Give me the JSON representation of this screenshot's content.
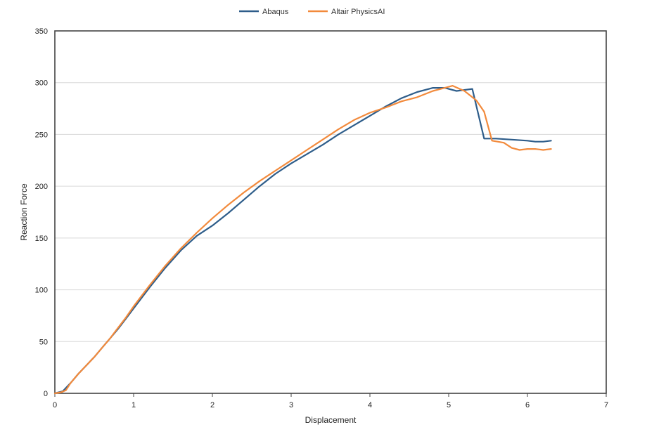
{
  "chart_data": {
    "type": "line",
    "title": "",
    "xlabel": "Displacement",
    "ylabel": "Reaction Force",
    "xlim": [
      0,
      7
    ],
    "ylim": [
      0,
      350
    ],
    "xticks": [
      0,
      1,
      2,
      3,
      4,
      5,
      6,
      7
    ],
    "yticks": [
      0,
      50,
      100,
      150,
      200,
      250,
      300,
      350
    ],
    "grid": "horizontal",
    "legend_position": "top-center",
    "series": [
      {
        "name": "Abaqus",
        "color": "#2e5d8a",
        "points": [
          [
            0.0,
            0
          ],
          [
            0.1,
            2
          ],
          [
            0.2,
            10
          ],
          [
            0.3,
            19
          ],
          [
            0.4,
            27
          ],
          [
            0.5,
            35
          ],
          [
            0.6,
            44
          ],
          [
            0.7,
            53
          ],
          [
            0.8,
            62
          ],
          [
            0.9,
            72
          ],
          [
            1.0,
            82
          ],
          [
            1.2,
            102
          ],
          [
            1.4,
            121
          ],
          [
            1.6,
            138
          ],
          [
            1.8,
            152
          ],
          [
            2.0,
            162
          ],
          [
            2.2,
            174
          ],
          [
            2.4,
            187
          ],
          [
            2.6,
            200
          ],
          [
            2.8,
            212
          ],
          [
            3.0,
            222
          ],
          [
            3.2,
            231
          ],
          [
            3.4,
            240
          ],
          [
            3.6,
            250
          ],
          [
            3.8,
            259
          ],
          [
            4.0,
            268
          ],
          [
            4.2,
            277
          ],
          [
            4.4,
            285
          ],
          [
            4.6,
            291
          ],
          [
            4.8,
            295
          ],
          [
            4.95,
            295
          ],
          [
            5.1,
            292
          ],
          [
            5.3,
            294
          ],
          [
            5.45,
            246
          ],
          [
            5.6,
            246
          ],
          [
            5.8,
            245
          ],
          [
            6.0,
            244
          ],
          [
            6.1,
            243
          ],
          [
            6.2,
            243
          ],
          [
            6.3,
            244
          ]
        ]
      },
      {
        "name": "Altair PhysicsAI",
        "color": "#f28a3c",
        "points": [
          [
            0.0,
            0
          ],
          [
            0.08,
            1
          ],
          [
            0.14,
            3
          ],
          [
            0.2,
            10
          ],
          [
            0.3,
            19
          ],
          [
            0.4,
            27
          ],
          [
            0.5,
            35
          ],
          [
            0.6,
            44
          ],
          [
            0.7,
            53
          ],
          [
            0.8,
            63
          ],
          [
            0.9,
            73
          ],
          [
            1.0,
            84
          ],
          [
            1.2,
            104
          ],
          [
            1.4,
            123
          ],
          [
            1.6,
            140
          ],
          [
            1.8,
            155
          ],
          [
            2.0,
            169
          ],
          [
            2.2,
            182
          ],
          [
            2.4,
            194
          ],
          [
            2.6,
            205
          ],
          [
            2.8,
            215
          ],
          [
            3.0,
            225
          ],
          [
            3.2,
            235
          ],
          [
            3.4,
            245
          ],
          [
            3.6,
            255
          ],
          [
            3.8,
            264
          ],
          [
            4.0,
            271
          ],
          [
            4.2,
            276
          ],
          [
            4.4,
            282
          ],
          [
            4.6,
            286
          ],
          [
            4.8,
            292
          ],
          [
            5.0,
            296
          ],
          [
            5.05,
            297
          ],
          [
            5.2,
            292
          ],
          [
            5.35,
            283
          ],
          [
            5.45,
            272
          ],
          [
            5.55,
            244
          ],
          [
            5.7,
            242
          ],
          [
            5.8,
            237
          ],
          [
            5.9,
            235
          ],
          [
            6.0,
            236
          ],
          [
            6.1,
            236
          ],
          [
            6.2,
            235
          ],
          [
            6.3,
            236
          ]
        ]
      }
    ]
  }
}
